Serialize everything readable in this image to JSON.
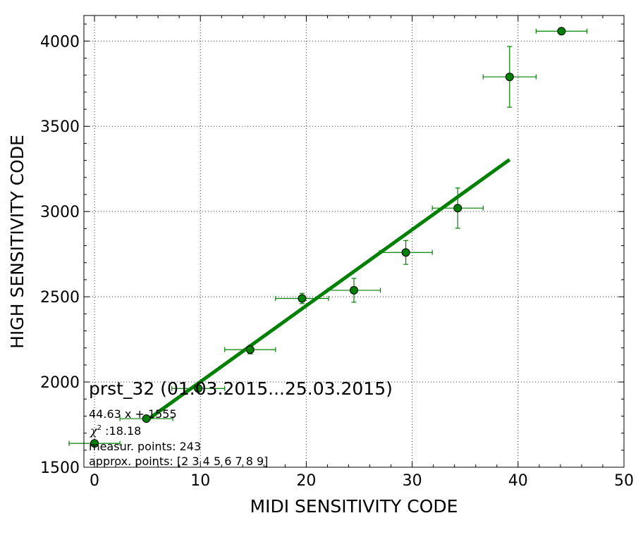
{
  "chart_data": {
    "type": "scatter",
    "xlabel": "MIDI SENSITIVITY CODE",
    "ylabel": "HIGH SENSITIVITY CODE",
    "xlim": [
      -1,
      50
    ],
    "ylim": [
      1500,
      4150
    ],
    "xticks": [
      0,
      10,
      20,
      30,
      40,
      50
    ],
    "yticks": [
      1500,
      2000,
      2500,
      3000,
      3500,
      4000
    ],
    "grid": true,
    "colors": {
      "marker": "#008000",
      "line": "#008000",
      "errorbar": "#008000"
    },
    "points": [
      {
        "x": 0.0,
        "y": 1640,
        "xerr": 2.4,
        "yerr": 0
      },
      {
        "x": 4.9,
        "y": 1785,
        "xerr": 2.5,
        "yerr": 10
      },
      {
        "x": 9.8,
        "y": 1962,
        "xerr": 2.5,
        "yerr": 18
      },
      {
        "x": 14.7,
        "y": 2190,
        "xerr": 2.4,
        "yerr": 25
      },
      {
        "x": 19.6,
        "y": 2490,
        "xerr": 2.5,
        "yerr": 30
      },
      {
        "x": 24.5,
        "y": 2538,
        "xerr": 2.5,
        "yerr": 70
      },
      {
        "x": 29.4,
        "y": 2760,
        "xerr": 2.5,
        "yerr": 70
      },
      {
        "x": 34.3,
        "y": 3020,
        "xerr": 2.4,
        "yerr": 118
      },
      {
        "x": 39.2,
        "y": 3790,
        "xerr": 2.5,
        "yerr": 178
      },
      {
        "x": 44.1,
        "y": 4058,
        "xerr": 2.4,
        "yerr": 10
      }
    ],
    "fit": {
      "slope": 44.63,
      "intercept": 1555,
      "x_start": 4.9,
      "x_end": 39.2
    },
    "annotations": {
      "title": "prst_32 (01.03.2015...25.03.2015)",
      "equation": "44.63 x + 1555",
      "chi_symbol": "χ",
      "chi_sup": "2",
      "chi_value": " :18.18",
      "measured": "measur. points: 243",
      "approx": "approx. points: [2 3 4 5 6 7 8 9]"
    }
  }
}
